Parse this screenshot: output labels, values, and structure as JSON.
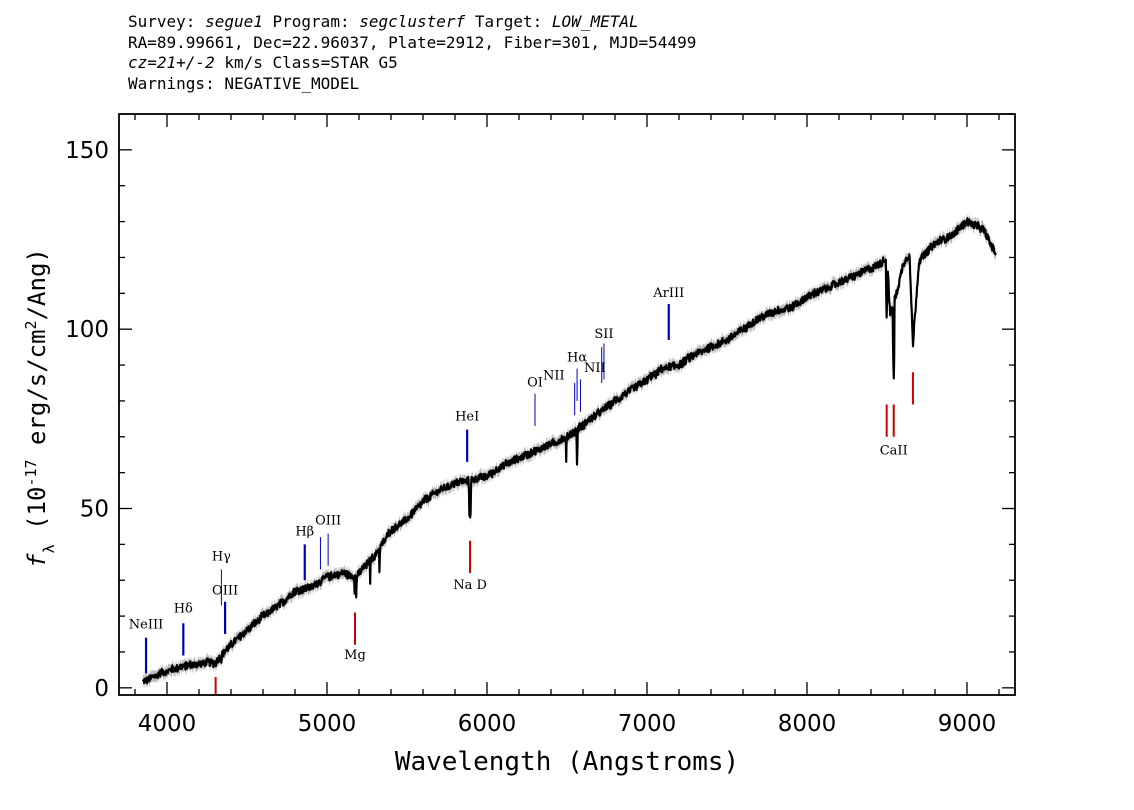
{
  "header": {
    "survey_label": "Survey:",
    "survey": "segue1",
    "program_label": "Program:",
    "program": "segclusterf",
    "target_label": "Target:",
    "target": "LOW_METAL",
    "line2": "RA=89.99661, Dec=22.96037, Plate=2912, Fiber=301, MJD=54499",
    "cz": "cz=21+/-2",
    "cz_rest": " km/s Class=STAR G5",
    "warnings": "Warnings: NEGATIVE_MODEL"
  },
  "chart_data": {
    "type": "line",
    "title": "",
    "xlabel": "Wavelength (Angstroms)",
    "ylabel": "f_λ (10^-17 erg/s/cm^2/Ang)",
    "xlim": [
      3700,
      9300
    ],
    "ylim": [
      -2,
      160
    ],
    "xticks": [
      4000,
      5000,
      6000,
      7000,
      8000,
      9000
    ],
    "yticks": [
      0,
      50,
      100,
      150
    ],
    "grid": false,
    "series": [
      {
        "color": "#000000",
        "error_color": "#bbbbbb",
        "x": [
          3850,
          3950,
          4100,
          4250,
          4300,
          4400,
          4500,
          4600,
          4700,
          4800,
          4900,
          5000,
          5100,
          5180,
          5300,
          5400,
          5500,
          5600,
          5700,
          5800,
          5900,
          6000,
          6100,
          6200,
          6300,
          6400,
          6500,
          6563,
          6650,
          6800,
          6900,
          7000,
          7100,
          7200,
          7300,
          7400,
          7500,
          7600,
          7700,
          7800,
          7900,
          8000,
          8100,
          8200,
          8300,
          8400,
          8450,
          8500,
          8520,
          8560,
          8600,
          8640,
          8662,
          8700,
          8800,
          8900,
          9000,
          9100,
          9180
        ],
        "y": [
          1.5,
          4,
          6,
          7,
          7,
          12,
          16,
          20,
          23,
          27,
          28,
          31,
          32,
          31,
          37,
          44,
          47,
          52,
          55,
          57,
          58,
          59,
          62,
          64,
          66,
          68,
          70,
          72,
          75,
          80,
          83,
          86,
          89,
          90,
          93,
          95,
          97,
          100,
          103,
          105,
          106,
          109,
          111,
          113,
          115,
          117,
          118,
          120,
          104,
          110,
          118,
          121,
          96,
          119,
          124,
          126,
          130,
          128,
          121
        ]
      }
    ],
    "absorption": [
      {
        "x": 3934,
        "y": 0.5
      },
      {
        "x": 3969,
        "y": 1.5
      },
      {
        "x": 4102,
        "y": 5
      },
      {
        "x": 4305,
        "y": 6
      },
      {
        "x": 4340,
        "y": 7
      },
      {
        "x": 4861,
        "y": 24.5
      },
      {
        "x": 5172,
        "y": 25
      },
      {
        "x": 5183,
        "y": 24
      },
      {
        "x": 5270,
        "y": 29
      },
      {
        "x": 5328,
        "y": 31
      },
      {
        "x": 5890,
        "y": 48
      },
      {
        "x": 5896,
        "y": 45
      },
      {
        "x": 6495,
        "y": 63
      },
      {
        "x": 6563,
        "y": 61
      },
      {
        "x": 8498,
        "y": 102
      },
      {
        "x": 8542,
        "y": 85
      },
      {
        "x": 8662,
        "y": 94
      }
    ],
    "emission_lines": [
      {
        "name": "NeIII",
        "x": 3869,
        "y0": 4,
        "y1": 14,
        "label_y": 16.5,
        "color": "#0000bb",
        "width": 2.2
      },
      {
        "name": "Hδ",
        "x": 4102,
        "y0": 9,
        "y1": 18,
        "label_y": 21,
        "color": "#0000bb",
        "width": 2.2
      },
      {
        "name": "Hγ",
        "x": 4340,
        "y0": 23,
        "y1": 33,
        "label_y": 35.5,
        "color": "#0000bb",
        "width": 1
      },
      {
        "name": "OIII",
        "x": 4363,
        "y0": 15,
        "y1": 24,
        "label_y": 26,
        "color": "#0000bb",
        "width": 2.2
      },
      {
        "name": "Hβ",
        "x": 4861,
        "y0": 30,
        "y1": 40,
        "label_y": 42.5,
        "color": "#0000bb",
        "width": 2.2
      },
      {
        "name": "",
        "x": 4959,
        "y0": 33,
        "y1": 42,
        "label_y": 0,
        "color": "#0000bb",
        "width": 1
      },
      {
        "name": "OIII",
        "x": 5007,
        "y0": 34,
        "y1": 43,
        "label_y": 45.5,
        "color": "#0000bb",
        "width": 1
      },
      {
        "name": "HeI",
        "x": 5876,
        "y0": 63,
        "y1": 72,
        "label_y": 74.5,
        "color": "#0000bb",
        "width": 2.2
      },
      {
        "name": "OI",
        "x": 6300,
        "y0": 73,
        "y1": 82,
        "label_y": 84,
        "color": "#0000bb",
        "width": 1
      },
      {
        "name": "NII",
        "x": 6548,
        "y0": 76,
        "y1": 85,
        "label_y": 86,
        "label_dx": -130,
        "color": "#0000bb",
        "width": 1
      },
      {
        "name": "Hα",
        "x": 6563,
        "y0": 80,
        "y1": 89,
        "label_y": 91,
        "color": "#0000bb",
        "width": 1
      },
      {
        "name": "NII",
        "x": 6584,
        "y0": 77,
        "y1": 86,
        "label_y": 88,
        "label_dx": 90,
        "color": "#0000bb",
        "width": 1
      },
      {
        "name": "",
        "x": 6717,
        "y0": 85,
        "y1": 95,
        "label_y": 0,
        "color": "#0000bb",
        "width": 1
      },
      {
        "name": "SII",
        "x": 6731,
        "y0": 86,
        "y1": 96,
        "label_y": 97.5,
        "color": "#0000bb",
        "width": 1
      },
      {
        "name": "ArIII",
        "x": 7136,
        "y0": 97,
        "y1": 107,
        "label_y": 109,
        "color": "#0000bb",
        "width": 2.2
      }
    ],
    "absorption_lines": [
      {
        "name": "",
        "x": 4304,
        "y0": -2,
        "y1": 3,
        "label_y": 0,
        "color": "#cc0000"
      },
      {
        "name": "Mg",
        "x": 5175,
        "y0": 12,
        "y1": 21,
        "label_y": 8,
        "color": "#cc0000"
      },
      {
        "name": "Na D",
        "x": 5894,
        "y0": 32,
        "y1": 41,
        "label_y": 27.5,
        "color": "#cc0000"
      },
      {
        "name": "",
        "x": 8498,
        "y0": 70,
        "y1": 79,
        "label_y": 0,
        "color": "#cc0000"
      },
      {
        "name": "CaII",
        "x": 8542,
        "y0": 70,
        "y1": 79,
        "label_y": 65,
        "color": "#cc0000"
      },
      {
        "name": "",
        "x": 8662,
        "y0": 79,
        "y1": 88,
        "label_y": 0,
        "color": "#cc0000"
      }
    ]
  }
}
